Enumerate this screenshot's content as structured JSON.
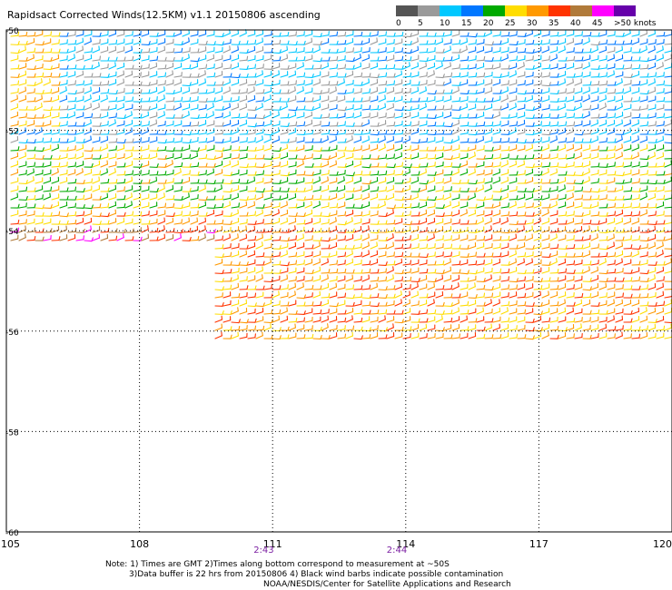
{
  "title": "Rapidsact Corrected Winds(12.5KM) v1.1 20150806 ascending",
  "legend": {
    "labels": [
      "0",
      "5",
      "10",
      "15",
      "20",
      "25",
      "30",
      "35",
      "40",
      "45",
      ">50 knots"
    ],
    "colors": [
      "#555555",
      "#9a9a9a",
      "#00c8ff",
      "#0077ff",
      "#00aa00",
      "#ffdd00",
      "#ff9900",
      "#ff3300",
      "#b07a3a",
      "#ff00ff",
      "#6600aa"
    ]
  },
  "map": {
    "lon_ticks": [
      "105",
      "108",
      "111",
      "114",
      "117",
      "120"
    ],
    "lat_ticks": [
      "-50",
      "-52",
      "-54",
      "-56",
      "-58",
      "-60"
    ],
    "lon_range": [
      105,
      120
    ],
    "lat_range": [
      -50,
      -60
    ],
    "times": [
      {
        "label": "2:43",
        "lon": 110.8
      },
      {
        "label": "2:44",
        "lon": 113.8
      }
    ]
  },
  "notes": {
    "line1": "Note: 1) Times are GMT 2)Times along bottom correspond to measurement at ~50S",
    "line2": "3)Data buffer is 22 hrs from 20150806 4) Black wind barbs indicate possible contamination",
    "line3": "NOAA/NESDIS/Center for Satellite Applications and Research"
  }
}
